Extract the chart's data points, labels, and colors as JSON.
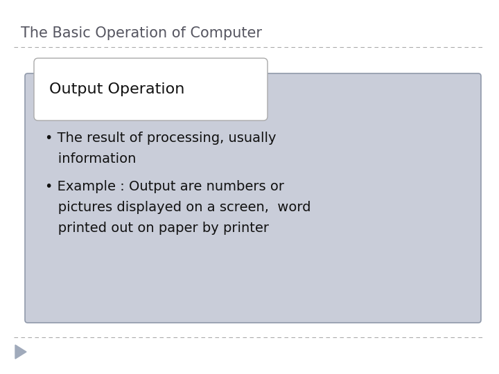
{
  "title": "The Basic Operation of Computer",
  "title_color": "#555560",
  "title_fontsize": 15,
  "subtitle_box_text": "Output Operation",
  "subtitle_fontsize": 16,
  "bullet1_line1": "• The result of processing, usually",
  "bullet1_line2": "   information",
  "bullet2_line1": "• Example : Output are numbers or",
  "bullet2_line2": "   pictures displayed on a screen,  word",
  "bullet2_line3": "   printed out on paper by printer",
  "bullet_fontsize": 14,
  "bg_color": "#ffffff",
  "main_box_color": "#c9cdd9",
  "main_box_edge_color": "#9099aa",
  "sub_box_color": "#ffffff",
  "sub_box_edge_color": "#aaaaaa",
  "text_color": "#111111",
  "dashed_line_color": "#aaaaaa",
  "arrow_color": "#a0aabb"
}
